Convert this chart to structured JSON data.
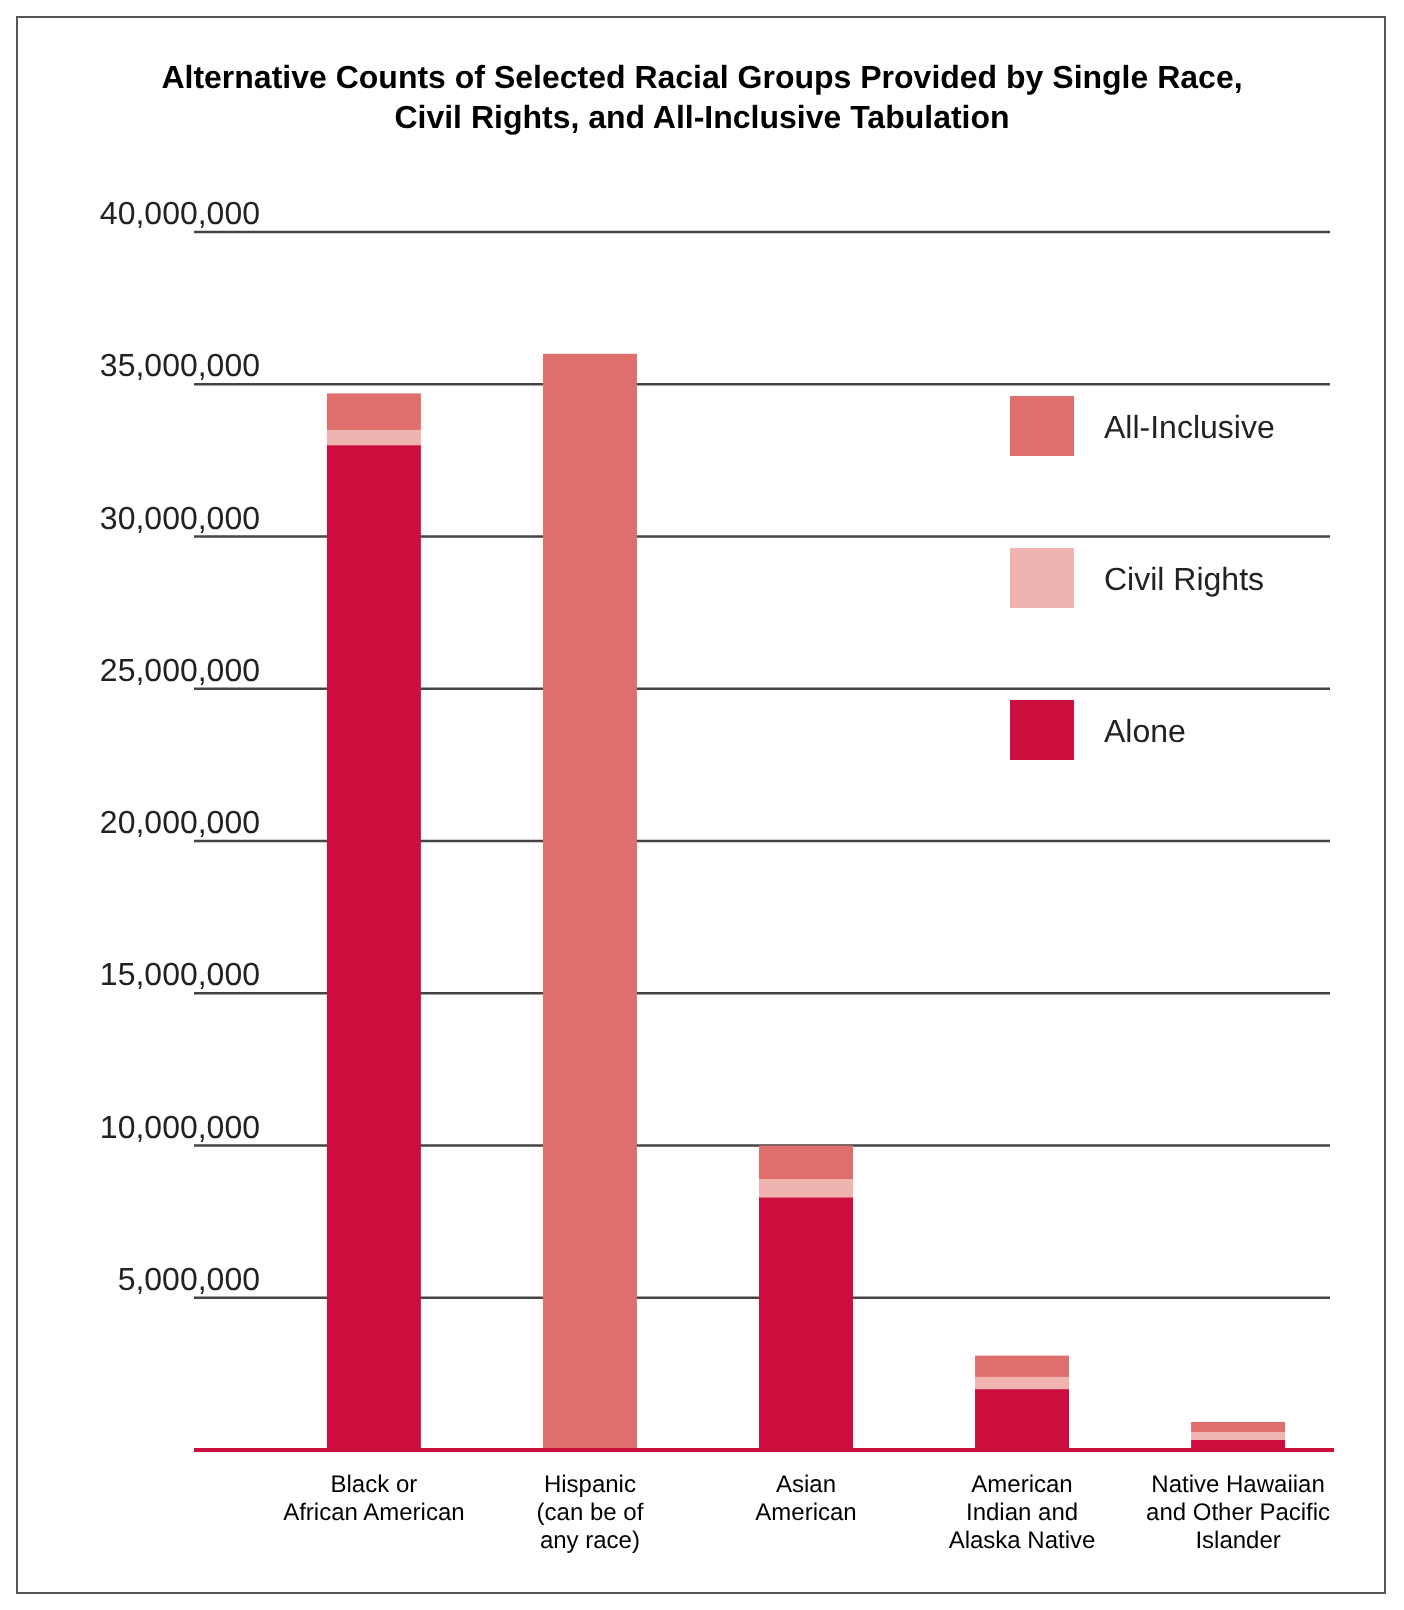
{
  "chart_data": {
    "type": "bar",
    "title": "Alternative Counts of Selected Racial Groups Provided by Single Race,\nCivil Rights, and All-Inclusive Tabulation",
    "categories": [
      "Black or\nAfrican American",
      "Hispanic\n(can be of\nany race)",
      "Asian\nAmerican",
      "American\nIndian and\nAlaska Native",
      "Native Hawaiian\nand Other Pacific\nIslander"
    ],
    "stacked": true,
    "series": [
      {
        "name": "Alone",
        "color": "#cc0e3e",
        "values": [
          33000000,
          null,
          8300000,
          2000000,
          330000
        ]
      },
      {
        "name": "Civil Rights",
        "color": "#f0b4b0",
        "values": [
          500000,
          null,
          600000,
          400000,
          260000
        ]
      },
      {
        "name": "All-Inclusive",
        "color": "#de6f6c",
        "values": [
          1200000,
          36000000,
          1100000,
          700000,
          330000
        ]
      }
    ],
    "ylim": [
      0,
      40000000
    ],
    "yticks": [
      {
        "value": 5000000,
        "label": "5,000,000"
      },
      {
        "value": 10000000,
        "label": "10,000,000"
      },
      {
        "value": 15000000,
        "label": "15,000,000"
      },
      {
        "value": 20000000,
        "label": "20,000,000"
      },
      {
        "value": 25000000,
        "label": "25,000,000"
      },
      {
        "value": 30000000,
        "label": "30,000,000"
      },
      {
        "value": 35000000,
        "label": "35,000,000"
      },
      {
        "value": 40000000,
        "label": "40,000,000"
      }
    ],
    "grid": "y",
    "legend": "right"
  }
}
